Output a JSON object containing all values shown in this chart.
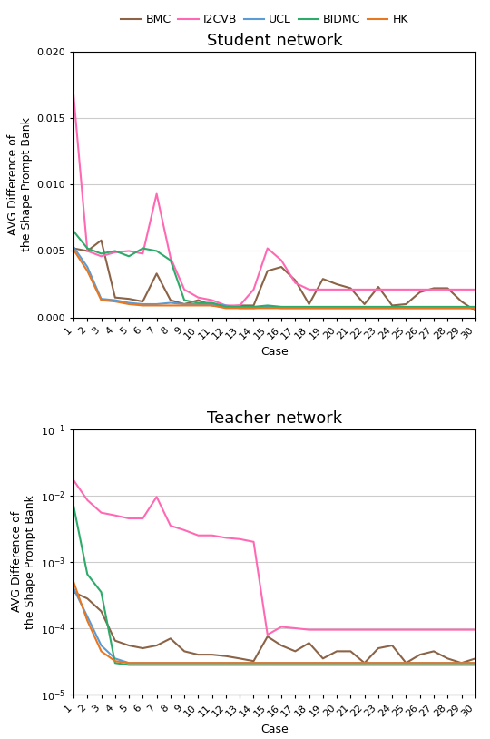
{
  "legend_labels": [
    "BMC",
    "I2CVB",
    "UCL",
    "BIDMC",
    "HK"
  ],
  "colors": {
    "BMC": "#8B6347",
    "I2CVB": "#FF69B4",
    "UCL": "#5B9BD5",
    "BIDMC": "#2EAA6A",
    "HK": "#E87722"
  },
  "cases": [
    1,
    2,
    3,
    4,
    5,
    6,
    7,
    8,
    9,
    10,
    11,
    12,
    13,
    14,
    15,
    16,
    17,
    18,
    19,
    20,
    21,
    22,
    23,
    24,
    25,
    26,
    27,
    28,
    29,
    30
  ],
  "student": {
    "BMC": [
      0.0052,
      0.005,
      0.0058,
      0.0015,
      0.0014,
      0.0012,
      0.0033,
      0.0013,
      0.001,
      0.0013,
      0.0009,
      0.0008,
      0.0009,
      0.0009,
      0.0035,
      0.0038,
      0.0028,
      0.001,
      0.0029,
      0.0025,
      0.0022,
      0.001,
      0.0023,
      0.0009,
      0.001,
      0.0019,
      0.0022,
      0.0022,
      0.0012,
      0.0005
    ],
    "I2CVB": [
      0.0168,
      0.005,
      0.0046,
      0.0049,
      0.005,
      0.0048,
      0.0093,
      0.0045,
      0.0021,
      0.0015,
      0.0013,
      0.0009,
      0.0009,
      0.0021,
      0.0052,
      0.0043,
      0.0026,
      0.0021,
      0.0021,
      0.0021,
      0.0021,
      0.0021,
      0.0021,
      0.0021,
      0.0021,
      0.0021,
      0.0021,
      0.0021,
      0.0021,
      0.0021
    ],
    "UCL": [
      0.0053,
      0.0038,
      0.0014,
      0.0013,
      0.0011,
      0.001,
      0.001,
      0.0011,
      0.001,
      0.001,
      0.001,
      0.0009,
      0.0007,
      0.0007,
      0.0008,
      0.0007,
      0.0007,
      0.0007,
      0.0007,
      0.0007,
      0.0007,
      0.0007,
      0.0007,
      0.0007,
      0.0007,
      0.0007,
      0.0007,
      0.0007,
      0.0007,
      0.0007
    ],
    "BIDMC": [
      0.0065,
      0.0052,
      0.0048,
      0.005,
      0.0046,
      0.0052,
      0.005,
      0.0043,
      0.0013,
      0.0011,
      0.0011,
      0.0008,
      0.0008,
      0.0008,
      0.0009,
      0.0008,
      0.0008,
      0.0008,
      0.0008,
      0.0008,
      0.0008,
      0.0008,
      0.0008,
      0.0008,
      0.0008,
      0.0008,
      0.0008,
      0.0008,
      0.0008,
      0.0008
    ],
    "HK": [
      0.0051,
      0.0035,
      0.0013,
      0.0012,
      0.001,
      0.0009,
      0.0009,
      0.0009,
      0.0009,
      0.0009,
      0.0009,
      0.0007,
      0.0007,
      0.0007,
      0.0007,
      0.0007,
      0.0007,
      0.0007,
      0.0007,
      0.0007,
      0.0007,
      0.0007,
      0.0007,
      0.0007,
      0.0007,
      0.0007,
      0.0007,
      0.0007,
      0.0007,
      0.0007
    ]
  },
  "teacher": {
    "BMC": [
      0.00035,
      0.00028,
      0.00018,
      6.5e-05,
      5.5e-05,
      5e-05,
      5.5e-05,
      7e-05,
      4.5e-05,
      4e-05,
      4e-05,
      3.8e-05,
      3.5e-05,
      3.2e-05,
      7.5e-05,
      5.5e-05,
      4.5e-05,
      6e-05,
      3.5e-05,
      4.5e-05,
      4.5e-05,
      3e-05,
      5e-05,
      5.5e-05,
      3e-05,
      4e-05,
      4.5e-05,
      3.5e-05,
      3e-05,
      3.5e-05
    ],
    "I2CVB": [
      0.017,
      0.0085,
      0.0055,
      0.005,
      0.0045,
      0.0045,
      0.0095,
      0.0035,
      0.003,
      0.0025,
      0.0025,
      0.0023,
      0.0022,
      0.002,
      8e-05,
      0.000105,
      0.0001,
      9.5e-05,
      9.5e-05,
      9.5e-05,
      9.5e-05,
      9.5e-05,
      9.5e-05,
      9.5e-05,
      9.5e-05,
      9.5e-05,
      9.5e-05,
      9.5e-05,
      9.5e-05,
      9.5e-05
    ],
    "UCL": [
      0.0004,
      0.00015,
      5.5e-05,
      3.5e-05,
      3e-05,
      3e-05,
      3e-05,
      3e-05,
      3e-05,
      3e-05,
      3e-05,
      3e-05,
      3e-05,
      3e-05,
      3e-05,
      3e-05,
      3e-05,
      3e-05,
      3e-05,
      3e-05,
      3e-05,
      3e-05,
      3e-05,
      3e-05,
      3e-05,
      3e-05,
      3e-05,
      3e-05,
      3e-05,
      3e-05
    ],
    "BIDMC": [
      0.007,
      0.00065,
      0.00035,
      3e-05,
      2.8e-05,
      2.8e-05,
      2.8e-05,
      2.8e-05,
      2.8e-05,
      2.8e-05,
      2.8e-05,
      2.8e-05,
      2.8e-05,
      2.8e-05,
      2.8e-05,
      2.8e-05,
      2.8e-05,
      2.8e-05,
      2.8e-05,
      2.8e-05,
      2.8e-05,
      2.8e-05,
      2.8e-05,
      2.8e-05,
      2.8e-05,
      2.8e-05,
      2.8e-05,
      2.8e-05,
      2.8e-05,
      2.8e-05
    ],
    "HK": [
      0.0005,
      0.00013,
      4.5e-05,
      3.2e-05,
      3e-05,
      3e-05,
      3e-05,
      3e-05,
      3e-05,
      3e-05,
      3e-05,
      3e-05,
      3e-05,
      3e-05,
      3e-05,
      3e-05,
      3e-05,
      3e-05,
      3e-05,
      3e-05,
      3e-05,
      3e-05,
      3e-05,
      3e-05,
      3e-05,
      3e-05,
      3e-05,
      3e-05,
      3e-05,
      3e-05
    ]
  },
  "student_title": "Student network",
  "teacher_title": "Teacher network",
  "xlabel": "Case",
  "ylabel": "AVG Difference of\nthe Shape Prompt Bank",
  "student_ylim": [
    0.0,
    0.02
  ],
  "student_yticks": [
    0.0,
    0.005,
    0.01,
    0.015,
    0.02
  ],
  "teacher_ylim": [
    1e-05,
    0.1
  ],
  "bg_color": "#ffffff",
  "grid_color": "#cccccc",
  "linewidth": 1.5,
  "fontsize_title": 13,
  "fontsize_label": 9,
  "fontsize_tick": 8,
  "fontsize_legend": 9
}
